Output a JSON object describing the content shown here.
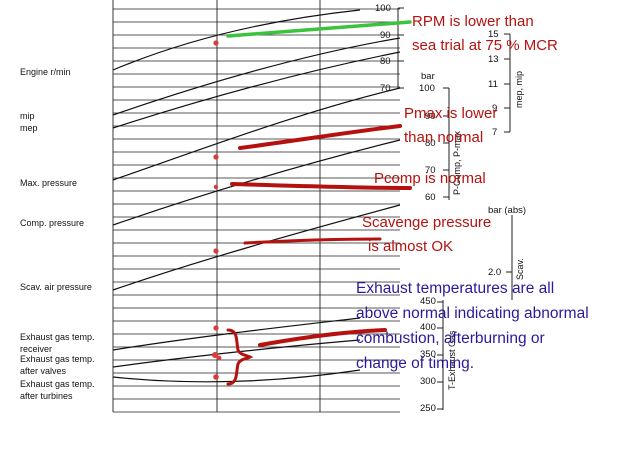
{
  "row_labels": {
    "engine": "Engine r/min",
    "mip": "mip",
    "mep": "mep",
    "max_pressure": "Max. pressure",
    "comp_pressure": "Comp. pressure",
    "scav_pressure": "Scav. air pressure",
    "exh_receiver_1": "Exhaust gas temp.",
    "exh_receiver_2": "receiver",
    "exh_valves_1": "Exhaust gas temp.",
    "exh_valves_2": "after valves",
    "exh_turbines_1": "Exhaust gas temp.",
    "exh_turbines_2": "after turbines"
  },
  "scales": {
    "rpm": [
      "100",
      "90",
      "80",
      "70"
    ],
    "bar_label_1": "bar",
    "mep_ticks": [
      "15",
      "13",
      "11",
      "9",
      "7"
    ],
    "mep_axis": "mep, mip",
    "pressure_ticks": [
      "100",
      "90",
      "80",
      "70",
      "60"
    ],
    "pressure_axis": "P-Comp, P-max",
    "bar_abs": "bar (abs)",
    "scav_tick": "2.0",
    "scav_axis": "Scav.",
    "temp_ticks": [
      "450",
      "400",
      "350",
      "300",
      "250"
    ],
    "temp_axis": "T-Exhaust Gas"
  },
  "annotations": {
    "rpm_1": "RPM is lower than",
    "rpm_2": "sea trial at 75 % MCR",
    "pmax_1": "Pmax is lower",
    "pmax_2": "than normal",
    "pcomp": "Pcomp is normal",
    "scav_1": "Scavenge pressure",
    "scav_2": "is almost OK",
    "exh_1": "Exhaust temperatures are all",
    "exh_2": "above normal indicating abnormal",
    "exh_3": "combustion, afterburning or",
    "exh_4": "change of timing."
  },
  "colors": {
    "green_marker": "#3cc23c",
    "red_marker": "#b5120f",
    "blue_text": "#2a1a9a"
  }
}
